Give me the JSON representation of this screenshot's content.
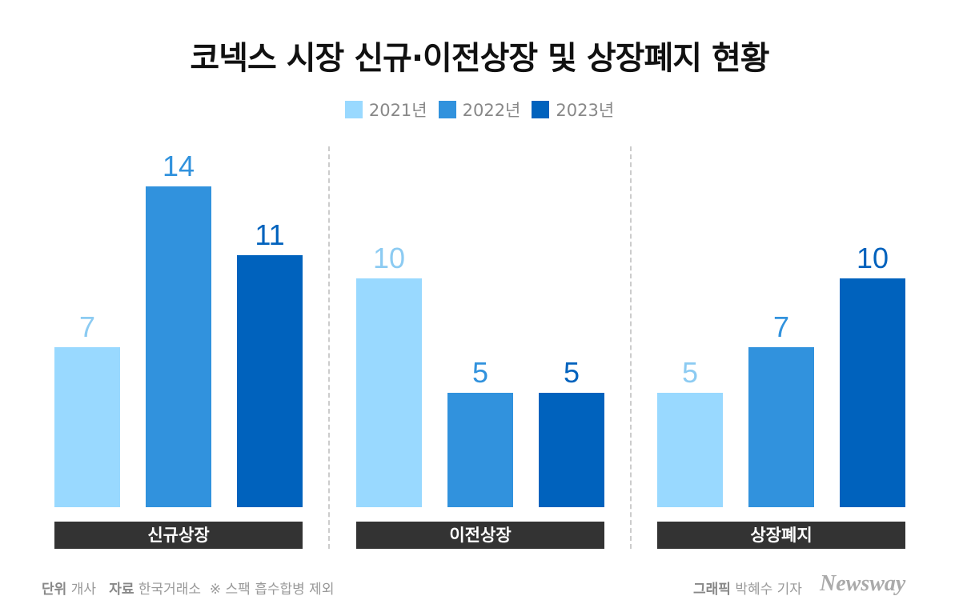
{
  "chart_data": {
    "type": "bar",
    "title": "코넥스 시장 신규·이전상장 및 상장폐지 현황",
    "categories": [
      "신규상장",
      "이전상장",
      "상장폐지"
    ],
    "series": [
      {
        "name": "2021년",
        "color": "#99d9ff",
        "label_color": "#8ccbf2",
        "values": [
          7,
          10,
          5
        ]
      },
      {
        "name": "2022년",
        "color": "#3192dd",
        "label_color": "#3192dd",
        "values": [
          14,
          5,
          7
        ]
      },
      {
        "name": "2023년",
        "color": "#0062bd",
        "label_color": "#0062bd",
        "values": [
          11,
          5,
          10
        ]
      }
    ],
    "ylim": [
      0,
      14
    ],
    "grid": false,
    "legend": "top-center"
  },
  "footer": {
    "unit_label": "단위",
    "unit_value": "개사",
    "source_label": "자료",
    "source_value": "한국거래소",
    "note": "※ 스팩 흡수합병 제외",
    "graphic_label": "그래픽",
    "graphic_value": "박혜수 기자",
    "logo": "Newsway"
  }
}
